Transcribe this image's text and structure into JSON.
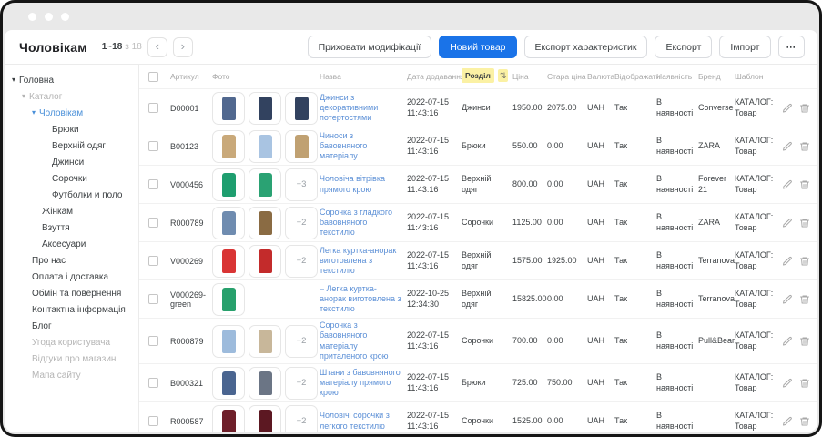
{
  "header": {
    "title": "Чоловікам",
    "pagination": {
      "range": "1~18",
      "total": "з 18",
      "prev": "‹",
      "next": "›"
    },
    "buttons": [
      {
        "name": "hide-modifications-button",
        "label": "Приховати модифікації",
        "style": "default"
      },
      {
        "name": "new-product-button",
        "label": "Новий товар",
        "style": "primary"
      },
      {
        "name": "export-characteristics-button",
        "label": "Експорт характеристик",
        "style": "default"
      },
      {
        "name": "export-button",
        "label": "Експорт",
        "style": "default"
      },
      {
        "name": "import-button",
        "label": "Імпорт",
        "style": "default"
      },
      {
        "name": "more-actions-button",
        "label": "⋯",
        "style": "more"
      }
    ]
  },
  "sidebar": {
    "items": [
      {
        "id": "golovna",
        "label": "Головна",
        "level": 0,
        "caret": true,
        "state": ""
      },
      {
        "id": "katalog",
        "label": "Каталог",
        "level": 1,
        "caret": true,
        "state": "muted"
      },
      {
        "id": "cholovikam",
        "label": "Чоловікам",
        "level": 2,
        "caret": true,
        "state": "active"
      },
      {
        "id": "bryuky",
        "label": "Брюки",
        "level": 4,
        "caret": false,
        "state": ""
      },
      {
        "id": "verkhniy-odyag",
        "label": "Верхній одяг",
        "level": 4,
        "caret": false,
        "state": ""
      },
      {
        "id": "dzhynsy",
        "label": "Джинси",
        "level": 4,
        "caret": false,
        "state": ""
      },
      {
        "id": "sorochky",
        "label": "Сорочки",
        "level": 4,
        "caret": false,
        "state": ""
      },
      {
        "id": "futbolky-i-polo",
        "label": "Футболки и поло",
        "level": 4,
        "caret": false,
        "state": ""
      },
      {
        "id": "zhinkam",
        "label": "Жінкам",
        "level": 3,
        "caret": false,
        "state": ""
      },
      {
        "id": "vzuttya",
        "label": "Взуття",
        "level": 3,
        "caret": false,
        "state": ""
      },
      {
        "id": "aksesuary",
        "label": "Аксесуари",
        "level": 3,
        "caret": false,
        "state": ""
      },
      {
        "id": "pro-nas",
        "label": "Про нас",
        "level": 2,
        "caret": false,
        "state": ""
      },
      {
        "id": "oplata-i-dostavka",
        "label": "Оплата і доставка",
        "level": 2,
        "caret": false,
        "state": ""
      },
      {
        "id": "obmin-ta-povernennya",
        "label": "Обмін та повернення",
        "level": 2,
        "caret": false,
        "state": ""
      },
      {
        "id": "kontaktna-informatsiya",
        "label": "Контактна інформація",
        "level": 2,
        "caret": false,
        "state": ""
      },
      {
        "id": "blog",
        "label": "Блог",
        "level": 2,
        "caret": false,
        "state": ""
      },
      {
        "id": "ugoda-korystuvacha",
        "label": "Угода користувача",
        "level": 2,
        "caret": false,
        "state": "muted"
      },
      {
        "id": "vidguky-pro-magazyn",
        "label": "Відгуки про магазин",
        "level": 2,
        "caret": false,
        "state": "muted"
      },
      {
        "id": "mapa-saytu",
        "label": "Мапа сайту",
        "level": 2,
        "caret": false,
        "state": "muted"
      }
    ]
  },
  "table": {
    "sort_icon": "⇅",
    "columns": [
      {
        "key": "sku",
        "label": "Артикул"
      },
      {
        "key": "photo",
        "label": "Фото"
      },
      {
        "key": "name",
        "label": "Назва"
      },
      {
        "key": "date",
        "label": "Дата додавання"
      },
      {
        "key": "section",
        "label": "Розділ",
        "sorted": true
      },
      {
        "key": "price",
        "label": "Ціна"
      },
      {
        "key": "old",
        "label": "Стара ціна"
      },
      {
        "key": "cur",
        "label": "Валюта"
      },
      {
        "key": "disp",
        "label": "Відображати"
      },
      {
        "key": "avail",
        "label": "Наявність"
      },
      {
        "key": "brand",
        "label": "Бренд"
      },
      {
        "key": "tpl",
        "label": "Шаблон"
      }
    ],
    "rows": [
      {
        "sku": "D00001",
        "photos": [
          "#51688f",
          "#32425f",
          "#32425f"
        ],
        "more": "",
        "name": "Джинси з декоративними потертостями",
        "date": "2022-07-15 11:43:16",
        "section": "Джинси",
        "price": "1950.00",
        "old": "2075.00",
        "cur": "UAH",
        "disp": "Так",
        "avail": "В наявності",
        "brand": "Converse",
        "tpl": "КАТАЛОГ: Товар"
      },
      {
        "sku": "B00123",
        "photos": [
          "#c9a97a",
          "#a9c4e2",
          "#c0a172"
        ],
        "more": "",
        "name": "Чиноси з бавовняного матеріалу",
        "date": "2022-07-15 11:43:16",
        "section": "Брюки",
        "price": "550.00",
        "old": "0.00",
        "cur": "UAH",
        "disp": "Так",
        "avail": "В наявності",
        "brand": "ZARA",
        "tpl": "КАТАЛОГ: Товар"
      },
      {
        "sku": "V000456",
        "photos": [
          "#1e9e6f",
          "#2aa273"
        ],
        "more": "+3",
        "name": "Чоловіча вітрівка прямого крою",
        "date": "2022-07-15 11:43:16",
        "section": "Верхній одяг",
        "price": "800.00",
        "old": "0.00",
        "cur": "UAH",
        "disp": "Так",
        "avail": "В наявності",
        "brand": "Forever 21",
        "tpl": "КАТАЛОГ: Товар"
      },
      {
        "sku": "R000789",
        "photos": [
          "#6f8cb0",
          "#8a6b43"
        ],
        "more": "+2",
        "name": "Сорочка з гладкого бавовняного текстилю",
        "date": "2022-07-15 11:43:16",
        "section": "Сорочки",
        "price": "1125.00",
        "old": "0.00",
        "cur": "UAH",
        "disp": "Так",
        "avail": "В наявності",
        "brand": "ZARA",
        "tpl": "КАТАЛОГ: Товар"
      },
      {
        "sku": "V000269",
        "photos": [
          "#d93434",
          "#c32b2b"
        ],
        "more": "+2",
        "name": "Легка куртка-анорак виготовлена з текстилю",
        "date": "2022-07-15 11:43:16",
        "section": "Верхній одяг",
        "price": "1575.00",
        "old": "1925.00",
        "cur": "UAH",
        "disp": "Так",
        "avail": "В наявності",
        "brand": "Terranova",
        "tpl": "КАТАЛОГ: Товар"
      },
      {
        "sku": "V000269-green",
        "photos": [
          "#27a06c"
        ],
        "more": "",
        "name": "– Легка куртка-анорак виготовлена з текстилю",
        "date": "2022-10-25 12:34:30",
        "section": "Верхній одяг",
        "price": "15825.00",
        "old": "0.00",
        "cur": "UAH",
        "disp": "Так",
        "avail": "В наявності",
        "brand": "Terranova",
        "tpl": "КАТАЛОГ: Товар"
      },
      {
        "sku": "R000879",
        "photos": [
          "#9dbbdc",
          "#c8b79a"
        ],
        "more": "+2",
        "name": "Сорочка з бавовняного матеріалу приталеного крою",
        "date": "2022-07-15 11:43:16",
        "section": "Сорочки",
        "price": "700.00",
        "old": "0.00",
        "cur": "UAH",
        "disp": "Так",
        "avail": "В наявності",
        "brand": "Pull&Bear",
        "tpl": "КАТАЛОГ: Товар"
      },
      {
        "sku": "B000321",
        "photos": [
          "#4a6590",
          "#6b7585"
        ],
        "more": "+2",
        "name": "Штани з бавовняного матеріалу прямого крою",
        "date": "2022-07-15 11:43:16",
        "section": "Брюки",
        "price": "725.00",
        "old": "750.00",
        "cur": "UAH",
        "disp": "Так",
        "avail": "В наявності",
        "brand": "",
        "tpl": "КАТАЛОГ: Товар"
      },
      {
        "sku": "R000587",
        "photos": [
          "#6e1f2a",
          "#5c1822"
        ],
        "more": "+2",
        "name": "Чоловічі сорочки з легкого текстилю",
        "date": "2022-07-15 11:43:16",
        "section": "Сорочки",
        "price": "1525.00",
        "old": "0.00",
        "cur": "UAH",
        "disp": "Так",
        "avail": "В наявності",
        "brand": "",
        "tpl": "КАТАЛОГ: Товар"
      }
    ]
  },
  "colors": {
    "primary": "#1a73e8",
    "link": "#5b8fd6",
    "sidebar_active": "#4a90d9",
    "sort_highlight": "#fbf1a4",
    "frame": "#151515",
    "titlebar": "#e9e9e9"
  }
}
